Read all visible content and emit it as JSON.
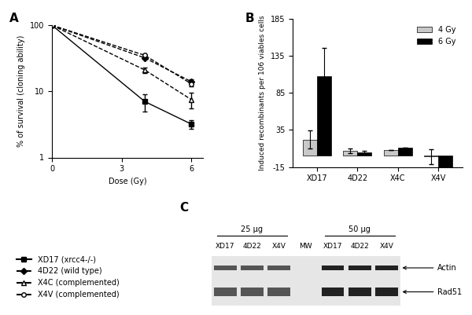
{
  "chart_data": [
    {
      "type": "line",
      "title": "A",
      "x_label": "Dose (Gy)",
      "y_label": "% of survival (cloning ability)",
      "x": [
        0,
        4,
        6
      ],
      "xlim": [
        0,
        6.5
      ],
      "xticks": [
        0,
        3,
        6
      ],
      "ylim": [
        1,
        100
      ],
      "yticks": [
        1,
        10,
        100
      ],
      "log": "y",
      "legend": "lower left",
      "series": [
        {
          "name": "XD17 (xrcc4-/-)",
          "color": "#000000",
          "marker": "s",
          "line_style": "solid",
          "fill": true,
          "values": [
            100,
            7,
            3.2
          ],
          "errors": [
            0,
            2,
            0.5
          ]
        },
        {
          "name": "4D22 (wild type)",
          "color": "#000000",
          "marker": "D",
          "line_style": "dashed",
          "fill": true,
          "values": [
            100,
            32,
            14
          ],
          "errors": [
            0,
            1,
            1
          ]
        },
        {
          "name": "X4C (complemented)",
          "color": "#000000",
          "marker": "^",
          "line_style": "dashed",
          "fill": false,
          "values": [
            100,
            21,
            7.5
          ],
          "errors": [
            0,
            2,
            2
          ]
        },
        {
          "name": "X4V (complemented)",
          "color": "#000000",
          "marker": "o",
          "line_style": "dashed",
          "fill": false,
          "values": [
            100,
            35,
            13
          ],
          "errors": [
            0,
            1,
            1
          ]
        }
      ]
    },
    {
      "type": "bar",
      "title": "B",
      "y_label": "Induced recombinants per 106 viables cells",
      "categories": [
        "XD17",
        "4D22",
        "X4C",
        "X4V"
      ],
      "ylim": [
        -15,
        185
      ],
      "yticks": [
        -15,
        35,
        85,
        135,
        185
      ],
      "legend": "upper right",
      "series": [
        {
          "name": "4 Gy",
          "color": "#c8c8c8",
          "values": [
            22,
            7,
            8,
            -1
          ],
          "errors": [
            12,
            3,
            0,
            10
          ]
        },
        {
          "name": "6 Gy",
          "color": "#000000",
          "values": [
            108,
            5,
            11,
            -15
          ],
          "errors": [
            38,
            2,
            0,
            0
          ]
        }
      ]
    }
  ],
  "panel_C": {
    "title": "C",
    "groups": [
      {
        "label": "25 µg",
        "lanes": [
          "XD17",
          "4D22",
          "X4V"
        ]
      },
      {
        "label": "50 µg",
        "lanes": [
          "XD17",
          "4D22",
          "X4V"
        ]
      }
    ],
    "marker_lane": "MW",
    "bands": [
      "Actin",
      "Rad51"
    ]
  }
}
